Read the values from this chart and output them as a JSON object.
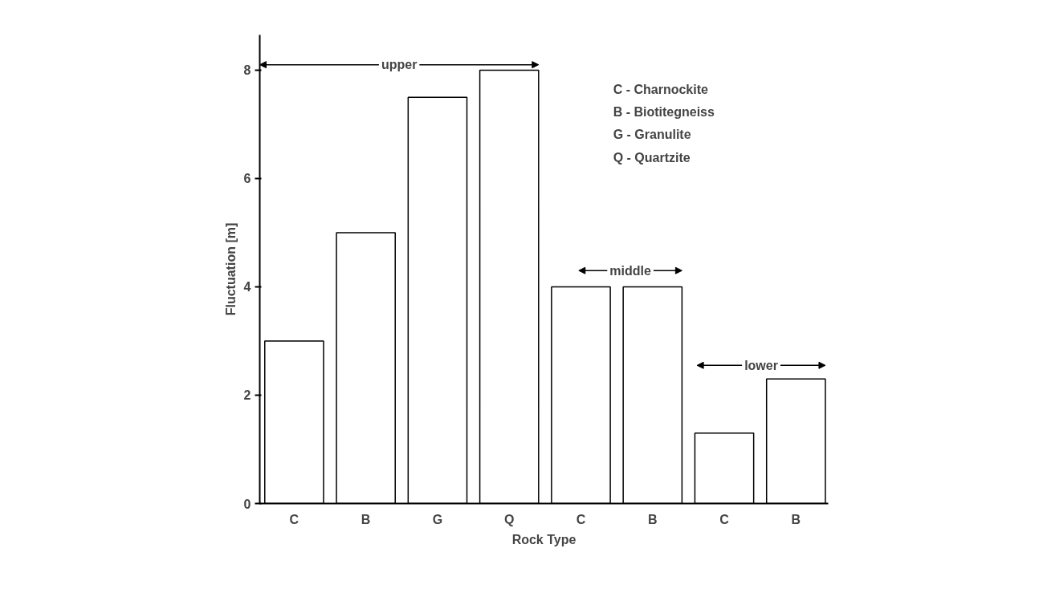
{
  "chart_data": {
    "type": "bar",
    "xlabel": "Rock Type",
    "ylabel": "Fluctuation [m]",
    "categories": [
      "C",
      "B",
      "G",
      "Q",
      "C",
      "B",
      "C",
      "B"
    ],
    "values": [
      3,
      5,
      7.5,
      8,
      4,
      4,
      1.3,
      2.3
    ],
    "color": "#ffffff",
    "ylim": [
      0,
      8.65
    ],
    "yticks": [
      0,
      2,
      4,
      6,
      8
    ],
    "grid": false,
    "annotations": [
      "upper",
      "middle",
      "lower",
      "C - Charnockite",
      "B - Biotitegneiss",
      "G - Granulite",
      "Q - Quartzite"
    ]
  }
}
